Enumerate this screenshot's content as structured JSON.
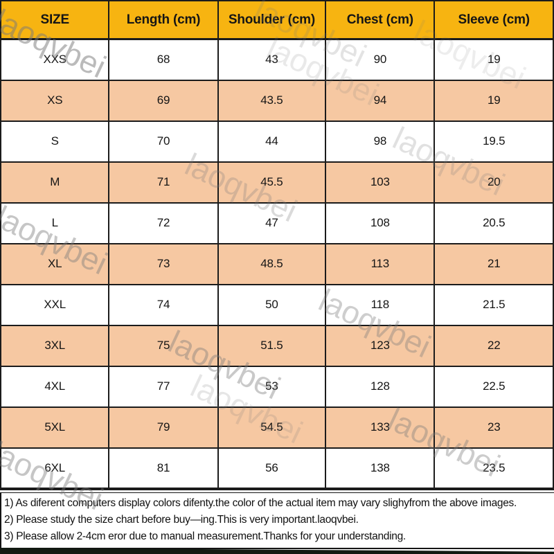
{
  "chart_data": {
    "type": "table",
    "title": "Garment size chart (cm)",
    "columns": [
      "SIZE",
      "Length (cm)",
      "Shoulder (cm)",
      "Chest (cm)",
      "Sleeve (cm)"
    ],
    "rows": [
      [
        "XXS",
        68,
        43,
        90,
        19
      ],
      [
        "XS",
        69,
        43.5,
        94,
        19
      ],
      [
        "S",
        70,
        44,
        98,
        19.5
      ],
      [
        "M",
        71,
        45.5,
        103,
        20
      ],
      [
        "L",
        72,
        47,
        108,
        20.5
      ],
      [
        "XL",
        73,
        48.5,
        113,
        21
      ],
      [
        "XXL",
        74,
        50,
        118,
        21.5
      ],
      [
        "3XL",
        75,
        51.5,
        123,
        22
      ],
      [
        "4XL",
        77,
        53,
        128,
        22.5
      ],
      [
        "5XL",
        79,
        54.5,
        133,
        23
      ],
      [
        "6XL",
        81,
        56,
        138,
        23.5
      ]
    ]
  },
  "table": {
    "headers": [
      "SIZE",
      "Length (cm)",
      "Shoulder (cm)",
      "Chest (cm)",
      "Sleeve (cm)"
    ],
    "rows": [
      {
        "size": "XXS",
        "length": "68",
        "shoulder": "43",
        "chest": "90",
        "sleeve": "19"
      },
      {
        "size": "XS",
        "length": "69",
        "shoulder": "43.5",
        "chest": "94",
        "sleeve": "19"
      },
      {
        "size": "S",
        "length": "70",
        "shoulder": "44",
        "chest": "98",
        "sleeve": "19.5"
      },
      {
        "size": "M",
        "length": "71",
        "shoulder": "45.5",
        "chest": "103",
        "sleeve": "20"
      },
      {
        "size": "L",
        "length": "72",
        "shoulder": "47",
        "chest": "108",
        "sleeve": "20.5"
      },
      {
        "size": "XL",
        "length": "73",
        "shoulder": "48.5",
        "chest": "113",
        "sleeve": "21"
      },
      {
        "size": "XXL",
        "length": "74",
        "shoulder": "50",
        "chest": "118",
        "sleeve": "21.5"
      },
      {
        "size": "3XL",
        "length": "75",
        "shoulder": "51.5",
        "chest": "123",
        "sleeve": "22"
      },
      {
        "size": "4XL",
        "length": "77",
        "shoulder": "53",
        "chest": "128",
        "sleeve": "22.5"
      },
      {
        "size": "5XL",
        "length": "79",
        "shoulder": "54.5",
        "chest": "133",
        "sleeve": "23"
      },
      {
        "size": "6XL",
        "length": "81",
        "shoulder": "56",
        "chest": "138",
        "sleeve": "23.5"
      }
    ]
  },
  "footnotes": [
    "1) As diferent computers display colors difenty.the color of the actual item may vary slighyfrom the above images.",
    "2) Please study the size chart before buy—ing.This is very important.laoqvbei.",
    "3) Please allow 2-4cm eror due to manual measurement.Thanks for your understanding."
  ],
  "watermark": {
    "text": "laoqvbei"
  },
  "colors": {
    "header_bg": "#F7B411",
    "alt_row_bg": "#F6C8A2",
    "border": "#1b1b1b",
    "accent_green": "#2e7d4f",
    "bottom_bar": "#121a12"
  }
}
